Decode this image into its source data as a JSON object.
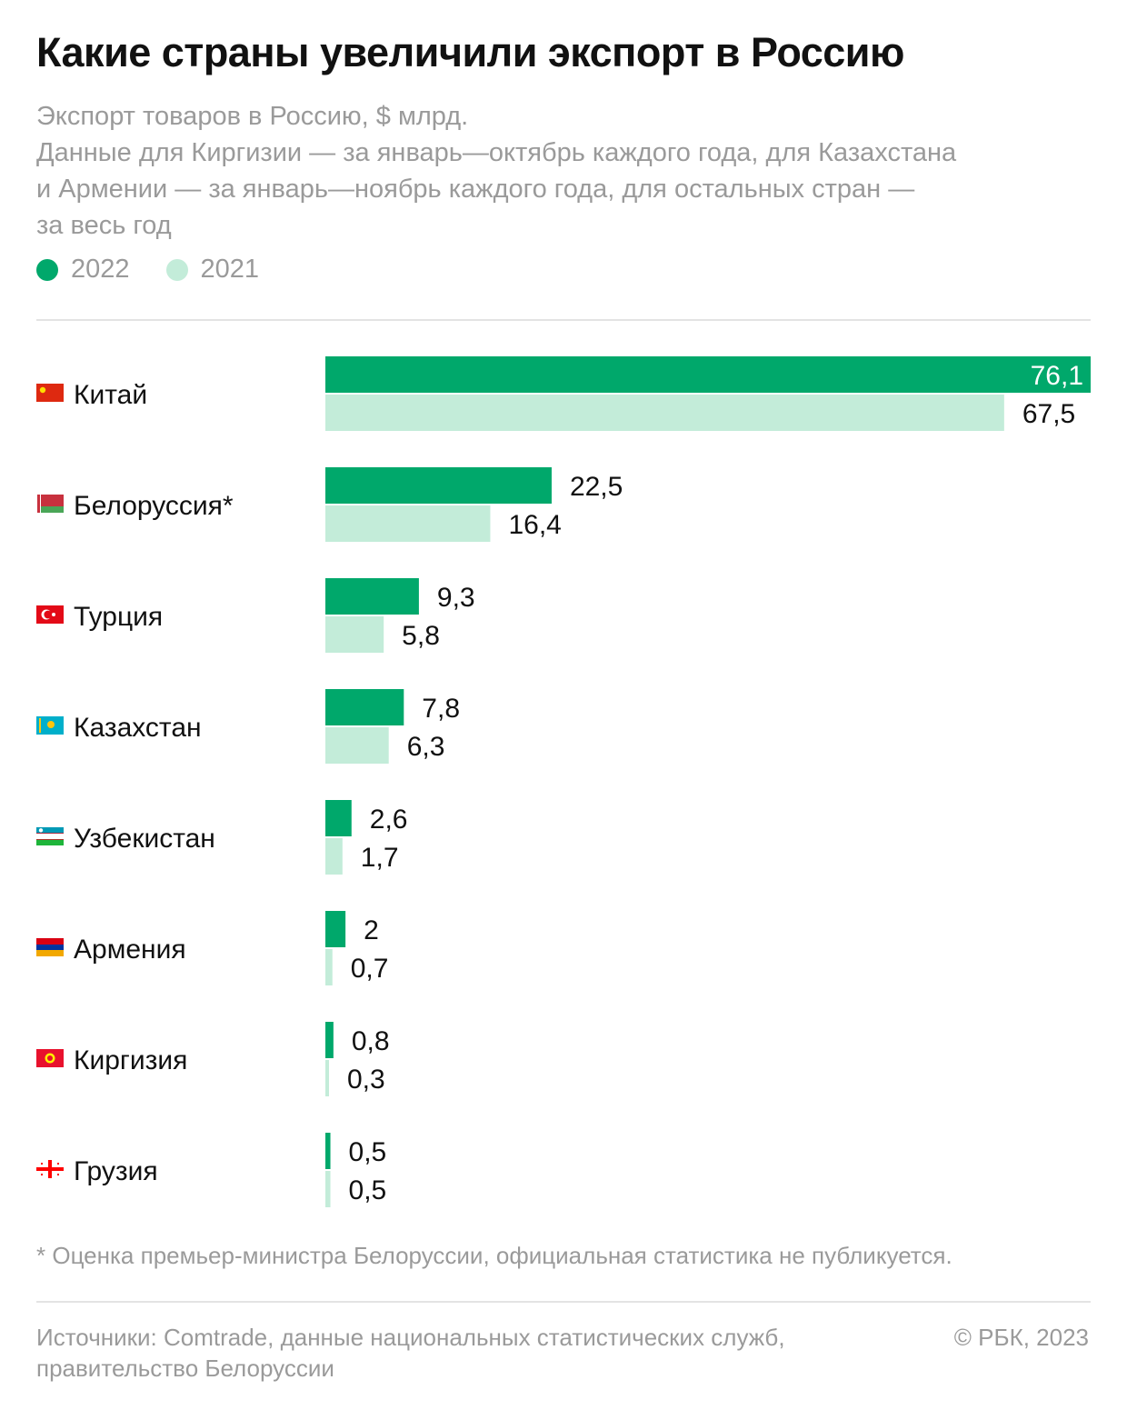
{
  "header": {
    "title": "Какие страны увеличили экспорт в Россию",
    "subtitle_lines": [
      "Экспорт товаров в Россию, $ млрд.",
      "Данные для Киргизии — за январь—октябрь каждого года, для Казахстана",
      "и Армении — за январь—ноябрь каждого года, для остальных стран —",
      "за весь год"
    ]
  },
  "legend": [
    {
      "label": "2022",
      "color": "#00a86b"
    },
    {
      "label": "2021",
      "color": "#c3ecd9"
    }
  ],
  "chart_data": {
    "type": "bar",
    "orientation": "horizontal",
    "categories": [
      "Китай",
      "Белоруссия*",
      "Турция",
      "Казахстан",
      "Узбекистан",
      "Армения",
      "Киргизия",
      "Грузия"
    ],
    "category_icons": [
      "china-flag-icon",
      "belarus-flag-icon",
      "turkey-flag-icon",
      "kazakhstan-flag-icon",
      "uzbekistan-flag-icon",
      "armenia-flag-icon",
      "kyrgyzstan-flag-icon",
      "georgia-flag-icon"
    ],
    "series": [
      {
        "name": "2022",
        "color": "#00a86b",
        "values": [
          76.1,
          22.5,
          9.3,
          7.8,
          2.6,
          2,
          0.8,
          0.5
        ],
        "labels": [
          "76,1",
          "22,5",
          "9,3",
          "7,8",
          "2,6",
          "2",
          "0,8",
          "0,5"
        ]
      },
      {
        "name": "2021",
        "color": "#c3ecd9",
        "values": [
          67.5,
          16.4,
          5.8,
          6.3,
          1.7,
          0.7,
          0.3,
          0.5
        ],
        "labels": [
          "67,5",
          "16,4",
          "5,8",
          "6,3",
          "1,7",
          "0,7",
          "0,3",
          "0,5"
        ]
      }
    ],
    "xlim": [
      0,
      76.1
    ],
    "grid": false
  },
  "footnote": "* Оценка премьер-министра Белоруссии, официальная статистика не публикуется.",
  "footer": {
    "sources_lines": [
      "Источники: Comtrade, данные национальных статистических служб,",
      "правительство Белоруссии"
    ],
    "copyright": "© РБК, 2023"
  }
}
